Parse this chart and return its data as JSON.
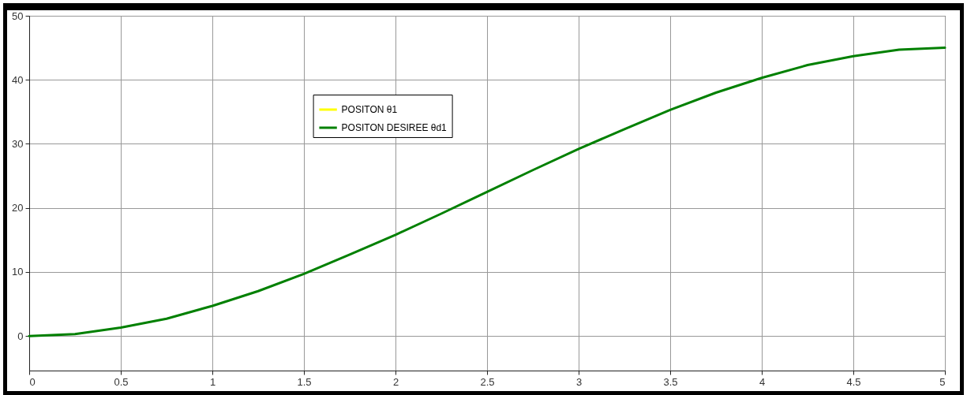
{
  "chart_data": {
    "type": "line",
    "x": [
      0,
      0.25,
      0.5,
      0.75,
      1,
      1.25,
      1.5,
      1.75,
      2,
      2.25,
      2.5,
      2.75,
      3,
      3.25,
      3.5,
      3.75,
      4,
      4.25,
      4.5,
      4.75,
      5
    ],
    "series": [
      {
        "name": "POSITON θ1",
        "color": "#ffff00",
        "values": [
          null,
          null,
          null,
          null,
          null,
          null,
          null,
          null,
          null,
          null,
          null,
          null,
          null,
          null,
          null,
          null,
          null,
          null,
          null,
          null,
          null
        ]
      },
      {
        "name": "POSITON DESIREE θd1",
        "color": "#008000",
        "values": [
          0,
          0.3,
          1.3,
          2.7,
          4.7,
          7.0,
          9.7,
          12.7,
          15.8,
          19.1,
          22.5,
          25.9,
          29.2,
          32.3,
          35.3,
          38.0,
          40.3,
          42.3,
          43.7,
          44.7,
          45.0
        ]
      }
    ],
    "xlim": [
      0,
      5
    ],
    "xticks": [
      0,
      0.5,
      1,
      1.5,
      2,
      2.5,
      3,
      3.5,
      4,
      4.5,
      5
    ],
    "ylim": [
      -5.4,
      50
    ],
    "yticks": [
      0,
      10,
      20,
      30,
      40,
      50
    ],
    "grid": true,
    "legend": "top",
    "marker": "none",
    "line_style": "solid"
  }
}
